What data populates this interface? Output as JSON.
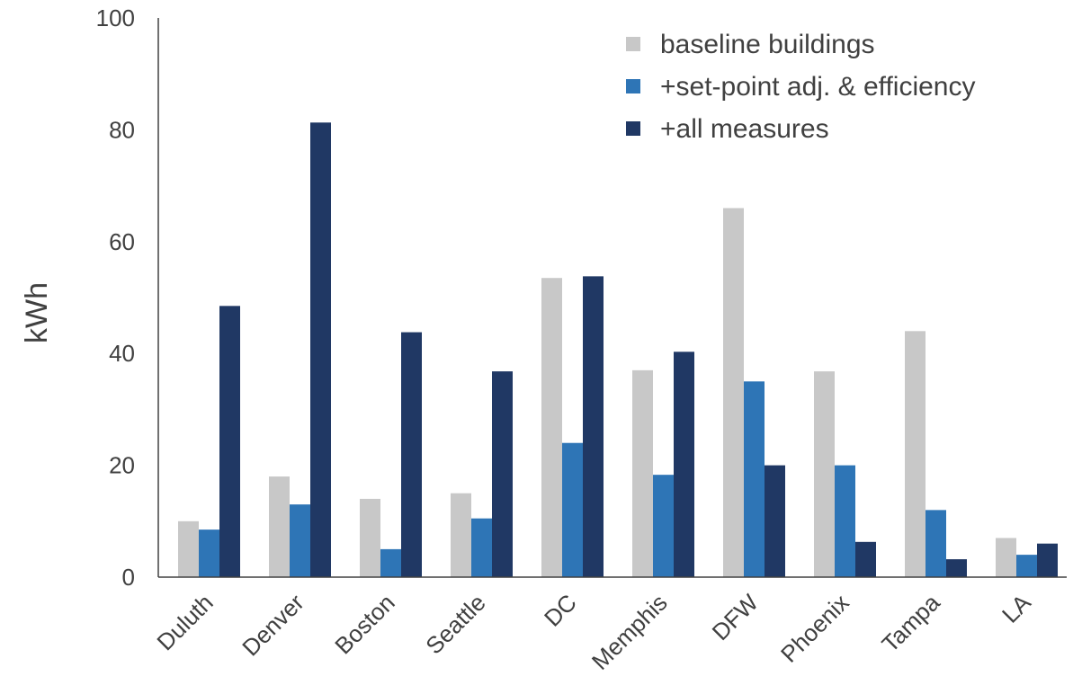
{
  "chart_data": {
    "type": "bar",
    "title": "",
    "xlabel": "",
    "ylabel": "kWh",
    "ylim": [
      0,
      100
    ],
    "yticks": [
      0,
      20,
      40,
      60,
      80,
      100
    ],
    "grid": false,
    "legend_position": "top-right",
    "categories": [
      "Duluth",
      "Denver",
      "Boston",
      "Seattle",
      "DC",
      "Memphis",
      "DFW",
      "Phoenix",
      "Tampa",
      "LA"
    ],
    "series": [
      {
        "name": "baseline buildings",
        "color": "#c8c8c8",
        "values": [
          10,
          18,
          14,
          15,
          53.5,
          37,
          66,
          36.8,
          44,
          7
        ]
      },
      {
        "name": "+set-point adj. & efficiency",
        "color": "#2e75b6",
        "values": [
          8.5,
          13,
          5,
          10.5,
          24,
          18.3,
          35,
          20,
          12,
          4
        ]
      },
      {
        "name": "+all measures",
        "color": "#203864",
        "values": [
          48.5,
          81.3,
          43.8,
          36.8,
          53.8,
          40.3,
          20,
          6.3,
          3.2,
          6
        ]
      }
    ]
  }
}
